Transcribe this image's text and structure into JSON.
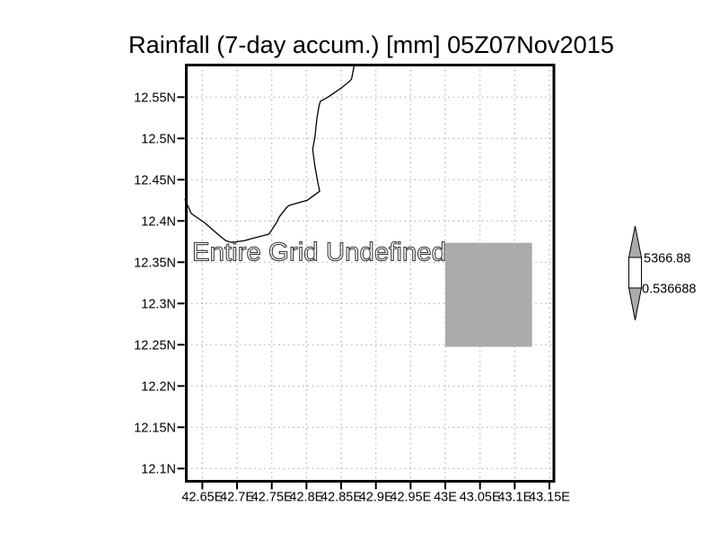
{
  "window": {
    "background": "#ffffff"
  },
  "colors": {
    "frame": "#000000",
    "grid_dots": "#b4b4b4",
    "undefined_fill": "#ababab",
    "colorbar_arrow_fill": "#ababab",
    "undefined_message_stroke": "#383838",
    "text": "#000000"
  },
  "chart_data": {
    "type": "heatmap",
    "title": "Rainfall (7-day accum.) [mm] 05Z07Nov2015",
    "status_message": "Entire Grid Undefined",
    "x_axis": {
      "ticks": [
        42.65,
        42.7,
        42.75,
        42.8,
        42.85,
        42.9,
        42.95,
        43,
        43.05,
        43.1,
        43.15
      ],
      "tick_labels": [
        "42.65E",
        "42.7E",
        "42.75E",
        "42.8E",
        "42.85E",
        "42.9E",
        "42.95E",
        "43E",
        "43.05E",
        "43.1E",
        "43.15E"
      ],
      "range": [
        42.625,
        43.157
      ],
      "unit": "degrees_east"
    },
    "y_axis": {
      "ticks": [
        12.55,
        12.5,
        12.45,
        12.4,
        12.35,
        12.3,
        12.25,
        12.2,
        12.15,
        12.1
      ],
      "tick_labels": [
        "12.55N",
        "12.5N",
        "12.45N",
        "12.4N",
        "12.35N",
        "12.3N",
        "12.25N",
        "12.2N",
        "12.15N",
        "12.1N"
      ],
      "range": [
        12.084,
        12.59
      ],
      "unit": "degrees_north"
    },
    "grid": {
      "visible": true,
      "style": "dotted"
    },
    "undefined_cell": {
      "lon_min": 43.0,
      "lon_max": 43.125,
      "lat_min": 12.2475,
      "lat_max": 12.3735,
      "fill": "#ababab"
    },
    "colorbar": {
      "max_label": "5366.88",
      "min_label": "0.536688",
      "box_fill": "#ffffff",
      "arrow_fill": "#ababab"
    },
    "coastline": [
      [
        42.869,
        12.589
      ],
      [
        42.867,
        12.581
      ],
      [
        42.865,
        12.572
      ],
      [
        42.862,
        12.569
      ],
      [
        42.85,
        12.561
      ],
      [
        42.831,
        12.55
      ],
      [
        42.82,
        12.545
      ],
      [
        42.818,
        12.539
      ],
      [
        42.815,
        12.524
      ],
      [
        42.812,
        12.501
      ],
      [
        42.809,
        12.487
      ],
      [
        42.81,
        12.48
      ],
      [
        42.812,
        12.467
      ],
      [
        42.816,
        12.448
      ],
      [
        42.819,
        12.436
      ],
      [
        42.801,
        12.425
      ],
      [
        42.776,
        12.419
      ],
      [
        42.772,
        12.417
      ],
      [
        42.761,
        12.405
      ],
      [
        42.757,
        12.398
      ],
      [
        42.746,
        12.384
      ],
      [
        42.723,
        12.379
      ],
      [
        42.71,
        12.376
      ],
      [
        42.692,
        12.374
      ],
      [
        42.684,
        12.376
      ],
      [
        42.675,
        12.382
      ],
      [
        42.653,
        12.398
      ],
      [
        42.634,
        12.409
      ],
      [
        42.625,
        12.426
      ]
    ]
  }
}
